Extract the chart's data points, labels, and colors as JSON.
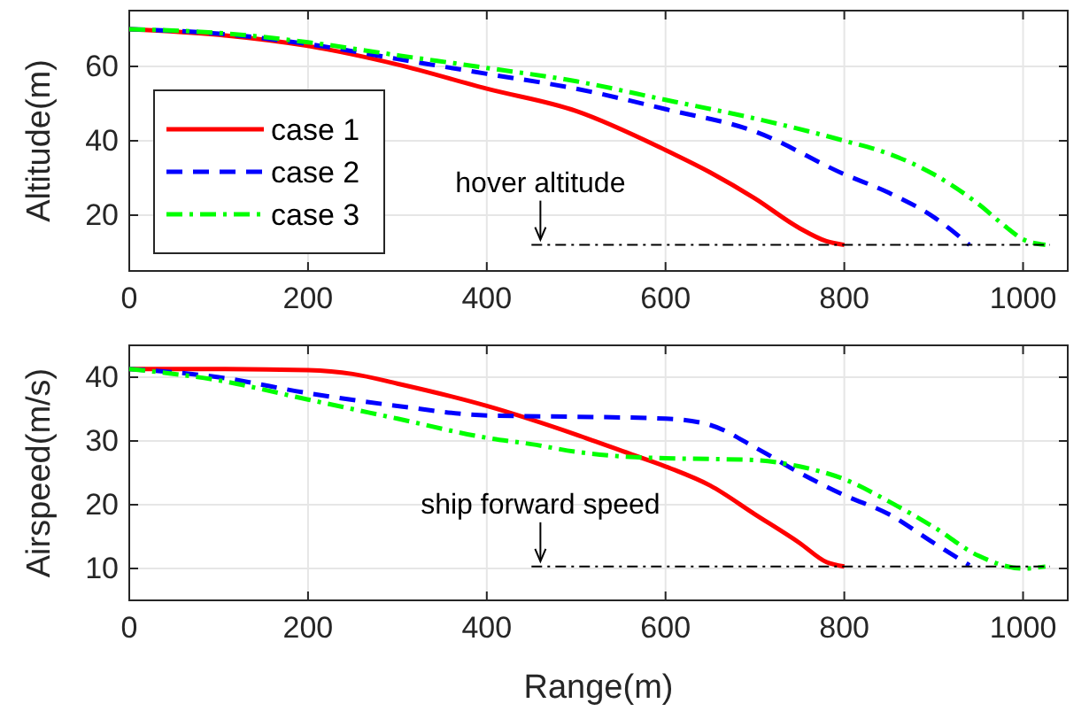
{
  "chart_data": [
    {
      "type": "line",
      "ylabel": "Altitude(m)",
      "xlim": [
        0,
        1050
      ],
      "xticks": [
        0,
        200,
        400,
        600,
        800,
        1000
      ],
      "ylim": [
        5,
        75
      ],
      "yticks": [
        20,
        40,
        60
      ],
      "grid": true,
      "legend": "bottom left",
      "annotations": [
        {
          "text": "hover altitude",
          "x": 460,
          "y": 12
        }
      ],
      "series": [
        {
          "name": "case 1",
          "color": "#ff0000",
          "line_style": "solid",
          "x": [
            0,
            100,
            200,
            300,
            400,
            500,
            600,
            650,
            700,
            750,
            780,
            800
          ],
          "values": [
            70,
            68.5,
            65.5,
            60.5,
            54,
            48,
            37.5,
            31.5,
            24.5,
            16.5,
            13,
            12
          ]
        },
        {
          "name": "case 2",
          "color": "#0000ff",
          "line_style": "dashed",
          "x": [
            0,
            100,
            200,
            300,
            400,
            500,
            600,
            700,
            800,
            850,
            900,
            940
          ],
          "values": [
            70,
            68.8,
            66,
            62,
            58,
            54,
            48.5,
            42.5,
            31,
            26,
            19.5,
            12
          ]
        },
        {
          "name": "case 3",
          "color": "#00ff00",
          "line_style": "dashdot",
          "x": [
            0,
            100,
            200,
            300,
            400,
            500,
            600,
            700,
            800,
            850,
            900,
            950,
            980,
            1000,
            1025
          ],
          "values": [
            70,
            69,
            66.5,
            63,
            59.6,
            56,
            51,
            46,
            40,
            36.5,
            31,
            23,
            17,
            13.5,
            12
          ]
        },
        {
          "color": "#000000",
          "line_style": "dashdot",
          "x": [
            450,
            1030
          ],
          "values": [
            12,
            12
          ]
        }
      ]
    },
    {
      "type": "line",
      "xlabel": "Range(m)",
      "ylabel": "Airspeed(m/s)",
      "xlim": [
        0,
        1050
      ],
      "xticks": [
        0,
        200,
        400,
        600,
        800,
        1000
      ],
      "ylim": [
        5,
        45
      ],
      "yticks": [
        10,
        20,
        30,
        40
      ],
      "grid": true,
      "annotations": [
        {
          "text": "ship forward speed",
          "x": 460,
          "y": 10.3
        }
      ],
      "series": [
        {
          "color": "#ff0000",
          "line_style": "solid",
          "x": [
            0,
            100,
            200,
            250,
            300,
            400,
            500,
            560,
            600,
            650,
            700,
            750,
            780,
            800
          ],
          "values": [
            41.3,
            41.3,
            41.1,
            40.5,
            39,
            35.5,
            31,
            28,
            26,
            23,
            18.5,
            14,
            11,
            10.3
          ]
        },
        {
          "color": "#0000ff",
          "line_style": "dashed",
          "x": [
            0,
            100,
            200,
            300,
            400,
            500,
            600,
            650,
            700,
            750,
            800,
            850,
            900,
            940
          ],
          "values": [
            41.3,
            40,
            37.5,
            35.5,
            34,
            33.8,
            33.5,
            32.5,
            29,
            25,
            21.5,
            18.5,
            14,
            10.5
          ]
        },
        {
          "color": "#00ff00",
          "line_style": "dashdot",
          "x": [
            0,
            100,
            200,
            300,
            400,
            450,
            500,
            560,
            600,
            700,
            750,
            800,
            850,
            900,
            950,
            1000,
            1025
          ],
          "values": [
            41.3,
            39.5,
            36.5,
            33.5,
            30.5,
            29.5,
            28.3,
            27.5,
            27.3,
            27,
            26,
            24,
            20.5,
            16.5,
            12,
            10,
            10.3
          ]
        },
        {
          "color": "#000000",
          "line_style": "dashdot",
          "x": [
            450,
            1030
          ],
          "values": [
            10.3,
            10.3
          ]
        }
      ]
    }
  ]
}
